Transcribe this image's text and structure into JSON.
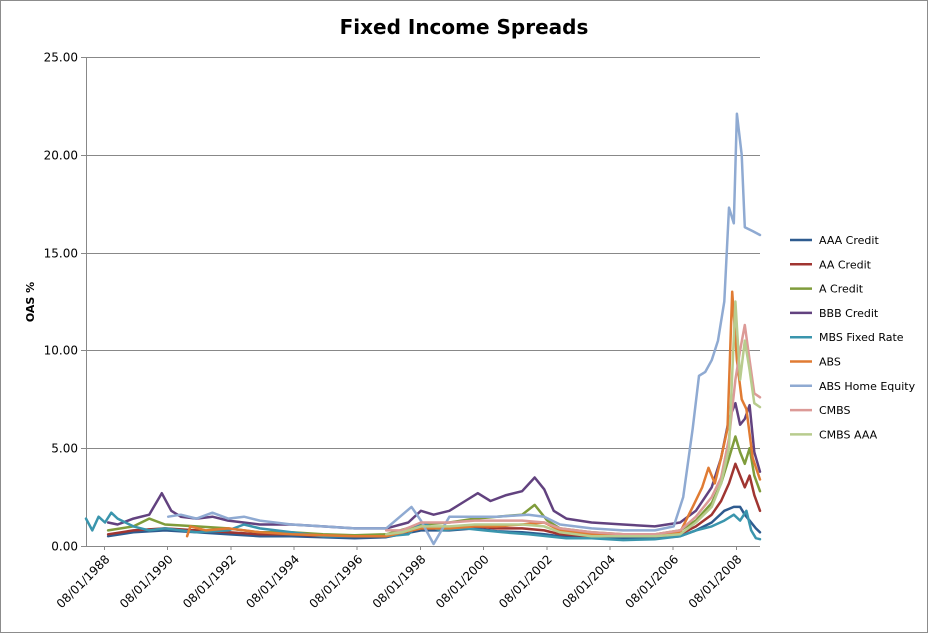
{
  "chart_data": {
    "type": "line",
    "title": "Fixed Income Spreads",
    "xlabel": "",
    "ylabel": "OAS %",
    "x_range": [
      1988.0,
      2009.33
    ],
    "ylim": [
      0,
      25
    ],
    "y_ticks": [
      "0.00",
      "5.00",
      "10.00",
      "15.00",
      "20.00",
      "25.00"
    ],
    "x_ticks": [
      "08/01/1988",
      "08/01/1990",
      "08/01/1992",
      "08/01/1994",
      "08/01/1996",
      "08/01/1998",
      "08/01/2000",
      "08/01/2002",
      "08/01/2004",
      "08/01/2006",
      "08/01/2008"
    ],
    "grid": true,
    "legend_position": "right",
    "series": [
      {
        "name": "AAA Credit",
        "color": "#2e5b8f",
        "points": [
          [
            1988.7,
            0.5
          ],
          [
            1989.5,
            0.7
          ],
          [
            1990.5,
            0.8
          ],
          [
            1991.5,
            0.7
          ],
          [
            1992.5,
            0.6
          ],
          [
            1993.5,
            0.5
          ],
          [
            1994.5,
            0.5
          ],
          [
            1995.5,
            0.45
          ],
          [
            1996.5,
            0.4
          ],
          [
            1997.5,
            0.45
          ],
          [
            1998.6,
            0.8
          ],
          [
            1999.5,
            0.8
          ],
          [
            2000.3,
            0.9
          ],
          [
            2001.0,
            0.75
          ],
          [
            2001.8,
            0.7
          ],
          [
            2002.5,
            0.6
          ],
          [
            2003.0,
            0.5
          ],
          [
            2004.0,
            0.45
          ],
          [
            2005.0,
            0.4
          ],
          [
            2006.0,
            0.4
          ],
          [
            2006.8,
            0.5
          ],
          [
            2007.3,
            0.8
          ],
          [
            2007.8,
            1.2
          ],
          [
            2008.2,
            1.8
          ],
          [
            2008.5,
            2.0
          ],
          [
            2008.7,
            2.0
          ],
          [
            2008.85,
            1.6
          ],
          [
            2009.0,
            1.3
          ],
          [
            2009.2,
            0.9
          ],
          [
            2009.33,
            0.7
          ]
        ]
      },
      {
        "name": "AA Credit",
        "color": "#a03531",
        "points": [
          [
            1988.7,
            0.6
          ],
          [
            1989.5,
            0.8
          ],
          [
            1990.5,
            0.9
          ],
          [
            1991.5,
            0.8
          ],
          [
            1992.5,
            0.7
          ],
          [
            1993.5,
            0.6
          ],
          [
            1994.5,
            0.6
          ],
          [
            1995.5,
            0.5
          ],
          [
            1996.5,
            0.5
          ],
          [
            1997.5,
            0.5
          ],
          [
            1998.6,
            0.9
          ],
          [
            1999.5,
            0.9
          ],
          [
            2000.3,
            1.0
          ],
          [
            2001.0,
            0.9
          ],
          [
            2001.8,
            0.9
          ],
          [
            2002.5,
            0.8
          ],
          [
            2003.0,
            0.6
          ],
          [
            2004.0,
            0.5
          ],
          [
            2005.0,
            0.5
          ],
          [
            2006.0,
            0.5
          ],
          [
            2006.8,
            0.6
          ],
          [
            2007.3,
            1.0
          ],
          [
            2007.8,
            1.6
          ],
          [
            2008.1,
            2.3
          ],
          [
            2008.35,
            3.2
          ],
          [
            2008.55,
            4.2
          ],
          [
            2008.7,
            3.6
          ],
          [
            2008.85,
            3.0
          ],
          [
            2009.0,
            3.6
          ],
          [
            2009.15,
            2.6
          ],
          [
            2009.33,
            1.8
          ]
        ]
      },
      {
        "name": "A Credit",
        "color": "#7f9c3b",
        "points": [
          [
            1988.7,
            0.8
          ],
          [
            1989.5,
            1.0
          ],
          [
            1990.0,
            1.4
          ],
          [
            1990.5,
            1.1
          ],
          [
            1991.5,
            1.0
          ],
          [
            1992.5,
            0.9
          ],
          [
            1993.5,
            0.7
          ],
          [
            1994.5,
            0.7
          ],
          [
            1995.5,
            0.6
          ],
          [
            1996.5,
            0.55
          ],
          [
            1997.5,
            0.6
          ],
          [
            1998.6,
            1.1
          ],
          [
            1999.5,
            1.2
          ],
          [
            2000.3,
            1.4
          ],
          [
            2001.0,
            1.5
          ],
          [
            2001.8,
            1.6
          ],
          [
            2002.2,
            2.1
          ],
          [
            2002.6,
            1.3
          ],
          [
            2003.0,
            0.9
          ],
          [
            2004.0,
            0.7
          ],
          [
            2005.0,
            0.6
          ],
          [
            2006.0,
            0.6
          ],
          [
            2006.8,
            0.8
          ],
          [
            2007.3,
            1.3
          ],
          [
            2007.8,
            2.2
          ],
          [
            2008.1,
            3.2
          ],
          [
            2008.35,
            4.5
          ],
          [
            2008.55,
            5.6
          ],
          [
            2008.7,
            4.8
          ],
          [
            2008.85,
            4.2
          ],
          [
            2009.0,
            5.0
          ],
          [
            2009.15,
            3.6
          ],
          [
            2009.33,
            2.8
          ]
        ]
      },
      {
        "name": "BBB Credit",
        "color": "#62427f",
        "points": [
          [
            1988.7,
            1.2
          ],
          [
            1989.0,
            1.1
          ],
          [
            1989.5,
            1.4
          ],
          [
            1990.0,
            1.6
          ],
          [
            1990.4,
            2.7
          ],
          [
            1990.7,
            1.8
          ],
          [
            1991.0,
            1.5
          ],
          [
            1991.5,
            1.4
          ],
          [
            1992.0,
            1.5
          ],
          [
            1992.5,
            1.3
          ],
          [
            1993.5,
            1.1
          ],
          [
            1994.5,
            1.1
          ],
          [
            1995.5,
            1.0
          ],
          [
            1996.5,
            0.9
          ],
          [
            1997.5,
            0.9
          ],
          [
            1998.2,
            1.2
          ],
          [
            1998.6,
            1.8
          ],
          [
            1999.0,
            1.6
          ],
          [
            1999.5,
            1.8
          ],
          [
            2000.0,
            2.3
          ],
          [
            2000.4,
            2.7
          ],
          [
            2000.8,
            2.3
          ],
          [
            2001.3,
            2.6
          ],
          [
            2001.8,
            2.8
          ],
          [
            2002.2,
            3.5
          ],
          [
            2002.5,
            2.9
          ],
          [
            2002.8,
            1.8
          ],
          [
            2003.2,
            1.4
          ],
          [
            2004.0,
            1.2
          ],
          [
            2005.0,
            1.1
          ],
          [
            2006.0,
            1.0
          ],
          [
            2006.8,
            1.2
          ],
          [
            2007.3,
            1.8
          ],
          [
            2007.8,
            3.0
          ],
          [
            2008.1,
            4.5
          ],
          [
            2008.35,
            6.5
          ],
          [
            2008.55,
            7.3
          ],
          [
            2008.7,
            6.2
          ],
          [
            2008.85,
            6.5
          ],
          [
            2009.0,
            7.2
          ],
          [
            2009.15,
            4.8
          ],
          [
            2009.33,
            3.8
          ]
        ]
      },
      {
        "name": "MBS Fixed Rate",
        "color": "#3a95ad",
        "points": [
          [
            1988.0,
            1.4
          ],
          [
            1988.2,
            0.8
          ],
          [
            1988.4,
            1.5
          ],
          [
            1988.6,
            1.2
          ],
          [
            1988.8,
            1.7
          ],
          [
            1989.0,
            1.4
          ],
          [
            1989.5,
            1.0
          ],
          [
            1990.0,
            0.8
          ],
          [
            1990.5,
            0.9
          ],
          [
            1991.5,
            0.7
          ],
          [
            1992.5,
            0.8
          ],
          [
            1993.0,
            1.1
          ],
          [
            1993.5,
            0.9
          ],
          [
            1994.5,
            0.7
          ],
          [
            1995.5,
            0.5
          ],
          [
            1996.5,
            0.5
          ],
          [
            1997.5,
            0.5
          ],
          [
            1998.2,
            0.6
          ],
          [
            1998.6,
            1.2
          ],
          [
            1999.2,
            0.8
          ],
          [
            2000.0,
            0.9
          ],
          [
            2000.6,
            0.8
          ],
          [
            2001.2,
            0.7
          ],
          [
            2002.0,
            0.6
          ],
          [
            2002.6,
            0.5
          ],
          [
            2003.2,
            0.4
          ],
          [
            2004.0,
            0.4
          ],
          [
            2005.0,
            0.3
          ],
          [
            2006.0,
            0.35
          ],
          [
            2006.8,
            0.5
          ],
          [
            2007.3,
            0.8
          ],
          [
            2007.8,
            1.0
          ],
          [
            2008.2,
            1.3
          ],
          [
            2008.5,
            1.6
          ],
          [
            2008.7,
            1.3
          ],
          [
            2008.9,
            1.8
          ],
          [
            2009.05,
            0.8
          ],
          [
            2009.2,
            0.4
          ],
          [
            2009.33,
            0.35
          ]
        ]
      },
      {
        "name": "ABS",
        "color": "#e07b33",
        "points": [
          [
            1991.2,
            0.5
          ],
          [
            1991.3,
            1.0
          ],
          [
            1991.8,
            0.8
          ],
          [
            1992.5,
            0.9
          ],
          [
            1993.5,
            0.7
          ],
          [
            1994.5,
            0.6
          ],
          [
            1995.5,
            0.55
          ],
          [
            1996.5,
            0.5
          ],
          [
            1997.5,
            0.5
          ],
          [
            1998.6,
            0.9
          ],
          [
            1999.5,
            0.9
          ],
          [
            2000.3,
            1.0
          ],
          [
            2001.0,
            1.0
          ],
          [
            2001.8,
            1.1
          ],
          [
            2002.5,
            1.2
          ],
          [
            2003.0,
            0.8
          ],
          [
            2004.0,
            0.6
          ],
          [
            2005.0,
            0.5
          ],
          [
            2006.0,
            0.5
          ],
          [
            2006.8,
            0.7
          ],
          [
            2007.2,
            2.0
          ],
          [
            2007.5,
            3.0
          ],
          [
            2007.7,
            4.0
          ],
          [
            2007.9,
            3.2
          ],
          [
            2008.1,
            4.5
          ],
          [
            2008.3,
            6.0
          ],
          [
            2008.45,
            13.0
          ],
          [
            2008.6,
            9.5
          ],
          [
            2008.75,
            7.5
          ],
          [
            2008.9,
            7.0
          ],
          [
            2009.1,
            4.5
          ],
          [
            2009.33,
            3.4
          ]
        ]
      },
      {
        "name": "ABS Home  Equity",
        "color": "#8faad2",
        "points": [
          [
            1990.6,
            1.5
          ],
          [
            1991.0,
            1.6
          ],
          [
            1991.5,
            1.4
          ],
          [
            1992.0,
            1.7
          ],
          [
            1992.5,
            1.4
          ],
          [
            1993.0,
            1.5
          ],
          [
            1993.5,
            1.3
          ],
          [
            1994.5,
            1.1
          ],
          [
            1995.5,
            1.0
          ],
          [
            1996.5,
            0.9
          ],
          [
            1997.5,
            0.9
          ],
          [
            1998.3,
            2.0
          ],
          [
            1998.6,
            1.3
          ],
          [
            1999.0,
            0.1
          ],
          [
            1999.5,
            1.5
          ],
          [
            2000.0,
            1.5
          ],
          [
            2001.0,
            1.5
          ],
          [
            2002.0,
            1.6
          ],
          [
            2002.5,
            1.5
          ],
          [
            2003.0,
            1.1
          ],
          [
            2004.0,
            0.9
          ],
          [
            2005.0,
            0.8
          ],
          [
            2006.0,
            0.8
          ],
          [
            2006.6,
            1.0
          ],
          [
            2006.9,
            2.5
          ],
          [
            2007.2,
            6.0
          ],
          [
            2007.4,
            8.7
          ],
          [
            2007.6,
            8.9
          ],
          [
            2007.8,
            9.5
          ],
          [
            2008.0,
            10.5
          ],
          [
            2008.2,
            12.5
          ],
          [
            2008.35,
            17.3
          ],
          [
            2008.5,
            16.5
          ],
          [
            2008.6,
            22.1
          ],
          [
            2008.75,
            20.0
          ],
          [
            2008.85,
            16.3
          ],
          [
            2009.1,
            16.1
          ],
          [
            2009.33,
            15.9
          ]
        ]
      },
      {
        "name": "CMBS",
        "color": "#dc9a97",
        "points": [
          [
            1997.5,
            0.8
          ],
          [
            1998.0,
            0.8
          ],
          [
            1998.6,
            1.2
          ],
          [
            1999.5,
            1.2
          ],
          [
            2000.3,
            1.3
          ],
          [
            2001.0,
            1.3
          ],
          [
            2001.8,
            1.3
          ],
          [
            2002.5,
            1.2
          ],
          [
            2003.0,
            0.9
          ],
          [
            2004.0,
            0.7
          ],
          [
            2005.0,
            0.6
          ],
          [
            2006.0,
            0.6
          ],
          [
            2006.8,
            0.8
          ],
          [
            2007.3,
            1.5
          ],
          [
            2007.8,
            2.5
          ],
          [
            2008.1,
            3.5
          ],
          [
            2008.35,
            5.5
          ],
          [
            2008.55,
            8.5
          ],
          [
            2008.7,
            10.0
          ],
          [
            2008.85,
            11.3
          ],
          [
            2009.0,
            9.5
          ],
          [
            2009.15,
            7.8
          ],
          [
            2009.33,
            7.6
          ]
        ]
      },
      {
        "name": "CMBS AAA",
        "color": "#b8cc8e",
        "points": [
          [
            1997.5,
            0.6
          ],
          [
            1998.0,
            0.7
          ],
          [
            1998.6,
            1.0
          ],
          [
            1999.5,
            1.0
          ],
          [
            2000.3,
            1.1
          ],
          [
            2001.0,
            1.1
          ],
          [
            2001.8,
            1.1
          ],
          [
            2002.5,
            1.0
          ],
          [
            2003.0,
            0.7
          ],
          [
            2004.0,
            0.5
          ],
          [
            2005.0,
            0.5
          ],
          [
            2006.0,
            0.5
          ],
          [
            2006.8,
            0.6
          ],
          [
            2007.3,
            1.2
          ],
          [
            2007.8,
            2.0
          ],
          [
            2008.1,
            3.2
          ],
          [
            2008.35,
            5.0
          ],
          [
            2008.55,
            12.5
          ],
          [
            2008.7,
            8.5
          ],
          [
            2008.85,
            10.5
          ],
          [
            2009.0,
            9.0
          ],
          [
            2009.15,
            7.3
          ],
          [
            2009.33,
            7.1
          ]
        ]
      }
    ]
  }
}
